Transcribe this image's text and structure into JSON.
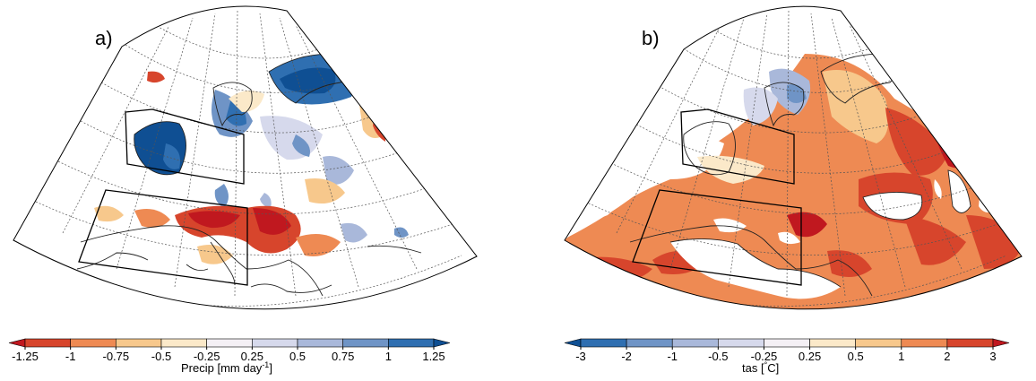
{
  "panels": [
    {
      "label": "a)",
      "colorbar": {
        "ticks": [
          "-1.25",
          "-1",
          "-0.75",
          "-0.5",
          "-0.25",
          "0.25",
          "0.5",
          "0.75",
          "1",
          "1.25"
        ],
        "title": "Precip [mm day",
        "title_superscript": "-1",
        "title_close": "]",
        "colors": [
          "#c0181f",
          "#d7452c",
          "#ee8a53",
          "#f7c88c",
          "#fbe9c9",
          "#f4f0f5",
          "#d6d9ec",
          "#a9b8da",
          "#6f94c6",
          "#2f6fb1",
          "#0f4f93"
        ]
      }
    },
    {
      "label": "b)",
      "colorbar": {
        "ticks": [
          "-3",
          "-2",
          "-1",
          "-0.5",
          "-0.25",
          "0.25",
          "0.5",
          "1",
          "2",
          "3"
        ],
        "title": "tas [",
        "title_superscript": "°",
        "title_close": "C]",
        "colors": [
          "#0f4f93",
          "#2f6fb1",
          "#6f94c6",
          "#a9b8da",
          "#d6d9ec",
          "#f4f0f5",
          "#fbe9c9",
          "#f7c88c",
          "#ee8a53",
          "#d7452c",
          "#c0181f"
        ]
      }
    }
  ]
}
